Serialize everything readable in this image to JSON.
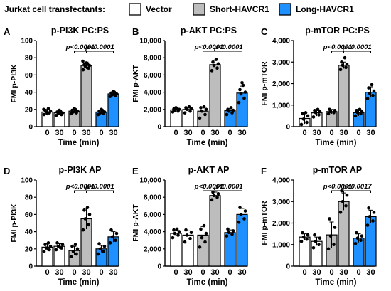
{
  "legend": {
    "title": "Jurkat cell transfectants:",
    "items": [
      {
        "label": "Vector",
        "color": "#ffffff"
      },
      {
        "label": "Short-HAVCR1",
        "color": "#bdbdbd"
      },
      {
        "label": "Long-HAVCR1",
        "color": "#1e90ff"
      }
    ]
  },
  "colors": {
    "vector": "#ffffff",
    "short": "#bdbdbd",
    "long": "#1e90ff",
    "point": "#000000"
  },
  "xlabel": "Time (min)",
  "tick_labels": [
    "0",
    "30",
    "0",
    "30",
    "0",
    "30"
  ],
  "chart_data": [
    {
      "letter": "A",
      "type": "bar",
      "title": "p-PI3K PC:PS",
      "ylabel": "FMI p-PI3K",
      "ylim": [
        0,
        100
      ],
      "yticks": [
        0,
        20,
        40,
        60,
        80,
        100
      ],
      "ytick_labels": [
        "0",
        "20",
        "40",
        "60",
        "80",
        "100"
      ],
      "x": [
        "Vector 0",
        "Vector 30",
        "Short 0",
        "Short 30",
        "Long 0",
        "Long 30"
      ],
      "values": [
        17,
        16,
        18,
        71,
        17,
        38
      ],
      "errors": [
        3,
        2,
        2,
        4,
        2,
        2
      ],
      "points": [
        [
          14,
          16,
          17,
          18,
          19,
          21,
          15,
          20
        ],
        [
          13,
          14,
          15,
          16,
          17,
          18,
          19
        ],
        [
          15,
          16,
          17,
          18,
          19,
          20,
          21
        ],
        [
          66,
          68,
          70,
          71,
          72,
          73,
          74,
          76
        ],
        [
          14,
          15,
          16,
          17,
          18,
          19,
          20
        ],
        [
          35,
          36,
          37,
          38,
          39,
          40,
          41
        ]
      ],
      "annotations": [
        {
          "from": 2,
          "to": 3,
          "text": "p<0.0001"
        },
        {
          "from": 3,
          "to": 5,
          "text": "p<0.0001"
        }
      ]
    },
    {
      "letter": "B",
      "type": "bar",
      "title": "p-AKT PC:PS",
      "ylabel": "FMI p-AKT",
      "ylim": [
        0,
        10000
      ],
      "yticks": [
        0,
        2000,
        4000,
        6000,
        8000,
        10000
      ],
      "ytick_labels": [
        "0",
        "2,000",
        "4,000",
        "6,000",
        "8,000",
        "10,000"
      ],
      "x": [
        "Vector 0",
        "Vector 30",
        "Short 0",
        "Short 30",
        "Long 0",
        "Long 30"
      ],
      "values": [
        1950,
        2000,
        1800,
        7200,
        1850,
        3900
      ],
      "errors": [
        200,
        250,
        500,
        500,
        250,
        800
      ],
      "points": [
        [
          1700,
          1800,
          1900,
          2000,
          2050,
          2100,
          2200
        ],
        [
          1600,
          1800,
          2000,
          2100,
          2200,
          2300
        ],
        [
          1000,
          1400,
          1800,
          2000,
          2200,
          2300
        ],
        [
          6500,
          6800,
          7100,
          7300,
          7500,
          7800
        ],
        [
          1400,
          1600,
          1800,
          1900,
          2000,
          2200
        ],
        [
          2800,
          3300,
          3800,
          4000,
          4300,
          4800,
          5100
        ]
      ],
      "annotations": [
        {
          "from": 2,
          "to": 3,
          "text": "p<0.0001"
        },
        {
          "from": 3,
          "to": 5,
          "text": "p<0.0001"
        }
      ]
    },
    {
      "letter": "C",
      "type": "bar",
      "title": "p-mTOR PC:PS",
      "ylabel": "FMI p-mTOR",
      "ylim": [
        0,
        4000
      ],
      "yticks": [
        0,
        1000,
        2000,
        3000,
        4000
      ],
      "ytick_labels": [
        "0",
        "1,000",
        "2,000",
        "3,000",
        "4,000"
      ],
      "x": [
        "Vector 0",
        "Vector 30",
        "Short 0",
        "Short 30",
        "Long 0",
        "Long 30"
      ],
      "values": [
        380,
        640,
        700,
        2850,
        650,
        1600
      ],
      "errors": [
        250,
        150,
        100,
        150,
        150,
        250
      ],
      "points": [
        [
          100,
          200,
          350,
          500,
          600,
          650
        ],
        [
          450,
          550,
          650,
          700,
          750,
          800
        ],
        [
          600,
          650,
          700,
          750,
          800
        ],
        [
          2650,
          2750,
          2850,
          2900,
          3000,
          3200
        ],
        [
          500,
          600,
          650,
          700,
          750,
          800
        ],
        [
          1300,
          1450,
          1550,
          1650,
          1800,
          1950
        ]
      ],
      "annotations": [
        {
          "from": 2,
          "to": 3,
          "text": "p<0.0001"
        },
        {
          "from": 3,
          "to": 5,
          "text": "p<0.0001"
        }
      ]
    },
    {
      "letter": "D",
      "type": "bar",
      "title": "p-PI3K AP",
      "ylabel": "FMI p-PI3K",
      "ylim": [
        0,
        100
      ],
      "yticks": [
        0,
        20,
        40,
        60,
        80,
        100
      ],
      "ytick_labels": [
        "0",
        "20",
        "40",
        "60",
        "80",
        "100"
      ],
      "x": [
        "Vector 0",
        "Vector 30",
        "Short 0",
        "Short 30",
        "Long 0",
        "Long 30"
      ],
      "values": [
        22,
        23,
        18,
        55,
        20,
        34
      ],
      "errors": [
        4,
        3,
        5,
        12,
        4,
        6
      ],
      "points": [
        [
          17,
          19,
          21,
          23,
          25,
          27
        ],
        [
          19,
          21,
          23,
          25,
          27
        ],
        [
          11,
          14,
          17,
          20,
          23,
          25
        ],
        [
          42,
          48,
          55,
          60,
          65,
          68
        ],
        [
          14,
          17,
          20,
          23,
          26
        ],
        [
          27,
          30,
          34,
          38,
          42
        ]
      ],
      "annotations": [
        {
          "from": 2,
          "to": 3,
          "text": "p<0.0001"
        },
        {
          "from": 3,
          "to": 5,
          "text": "p<0.0001"
        }
      ]
    },
    {
      "letter": "E",
      "type": "bar",
      "title": "p-AKT AP",
      "ylabel": "FMI p-AKT",
      "ylim": [
        0,
        10000
      ],
      "yticks": [
        0,
        2000,
        4000,
        6000,
        8000,
        10000
      ],
      "ytick_labels": [
        "0",
        "2,000",
        "4,000",
        "6,000",
        "8,000",
        "10,000"
      ],
      "x": [
        "Vector 0",
        "Vector 30",
        "Short 0",
        "Short 30",
        "Long 0",
        "Long 30"
      ],
      "values": [
        3800,
        3600,
        3600,
        8200,
        3900,
        6000
      ],
      "errors": [
        400,
        500,
        1000,
        400,
        300,
        700
      ],
      "points": [
        [
          3300,
          3600,
          3800,
          4000,
          4200,
          4300
        ],
        [
          2800,
          3200,
          3600,
          3900,
          4200
        ],
        [
          2200,
          2800,
          3300,
          3800,
          4300,
          4700
        ],
        [
          7700,
          8000,
          8200,
          8400,
          8600
        ],
        [
          3500,
          3700,
          3900,
          4100,
          4300
        ],
        [
          5100,
          5500,
          6000,
          6400,
          6800
        ]
      ],
      "annotations": [
        {
          "from": 2,
          "to": 3,
          "text": "p<0.0001"
        },
        {
          "from": 3,
          "to": 5,
          "text": "p<0.0001"
        }
      ]
    },
    {
      "letter": "F",
      "type": "bar",
      "title": "p-mTOR AP",
      "ylabel": "FMI p-mTOR",
      "ylim": [
        0,
        4000
      ],
      "yticks": [
        0,
        1000,
        2000,
        3000,
        4000
      ],
      "ytick_labels": [
        "0",
        "1,000",
        "2,000",
        "3,000",
        "4,000"
      ],
      "x": [
        "Vector 0",
        "Vector 30",
        "Short 0",
        "Short 30",
        "Long 0",
        "Long 30"
      ],
      "values": [
        1350,
        1150,
        1450,
        3000,
        1300,
        2300
      ],
      "errors": [
        150,
        200,
        600,
        400,
        200,
        300
      ],
      "points": [
        [
          1150,
          1250,
          1350,
          1450,
          1550
        ],
        [
          850,
          1000,
          1150,
          1300,
          1450
        ],
        [
          800,
          1000,
          1400,
          1800,
          2200
        ],
        [
          2500,
          2800,
          3000,
          3300,
          3500
        ],
        [
          1050,
          1200,
          1300,
          1400,
          1550
        ],
        [
          1900,
          2100,
          2300,
          2500,
          2700
        ]
      ],
      "annotations": [
        {
          "from": 2,
          "to": 3,
          "text": "p<0.0001"
        },
        {
          "from": 3,
          "to": 5,
          "text": "p=0.0017"
        }
      ]
    }
  ]
}
